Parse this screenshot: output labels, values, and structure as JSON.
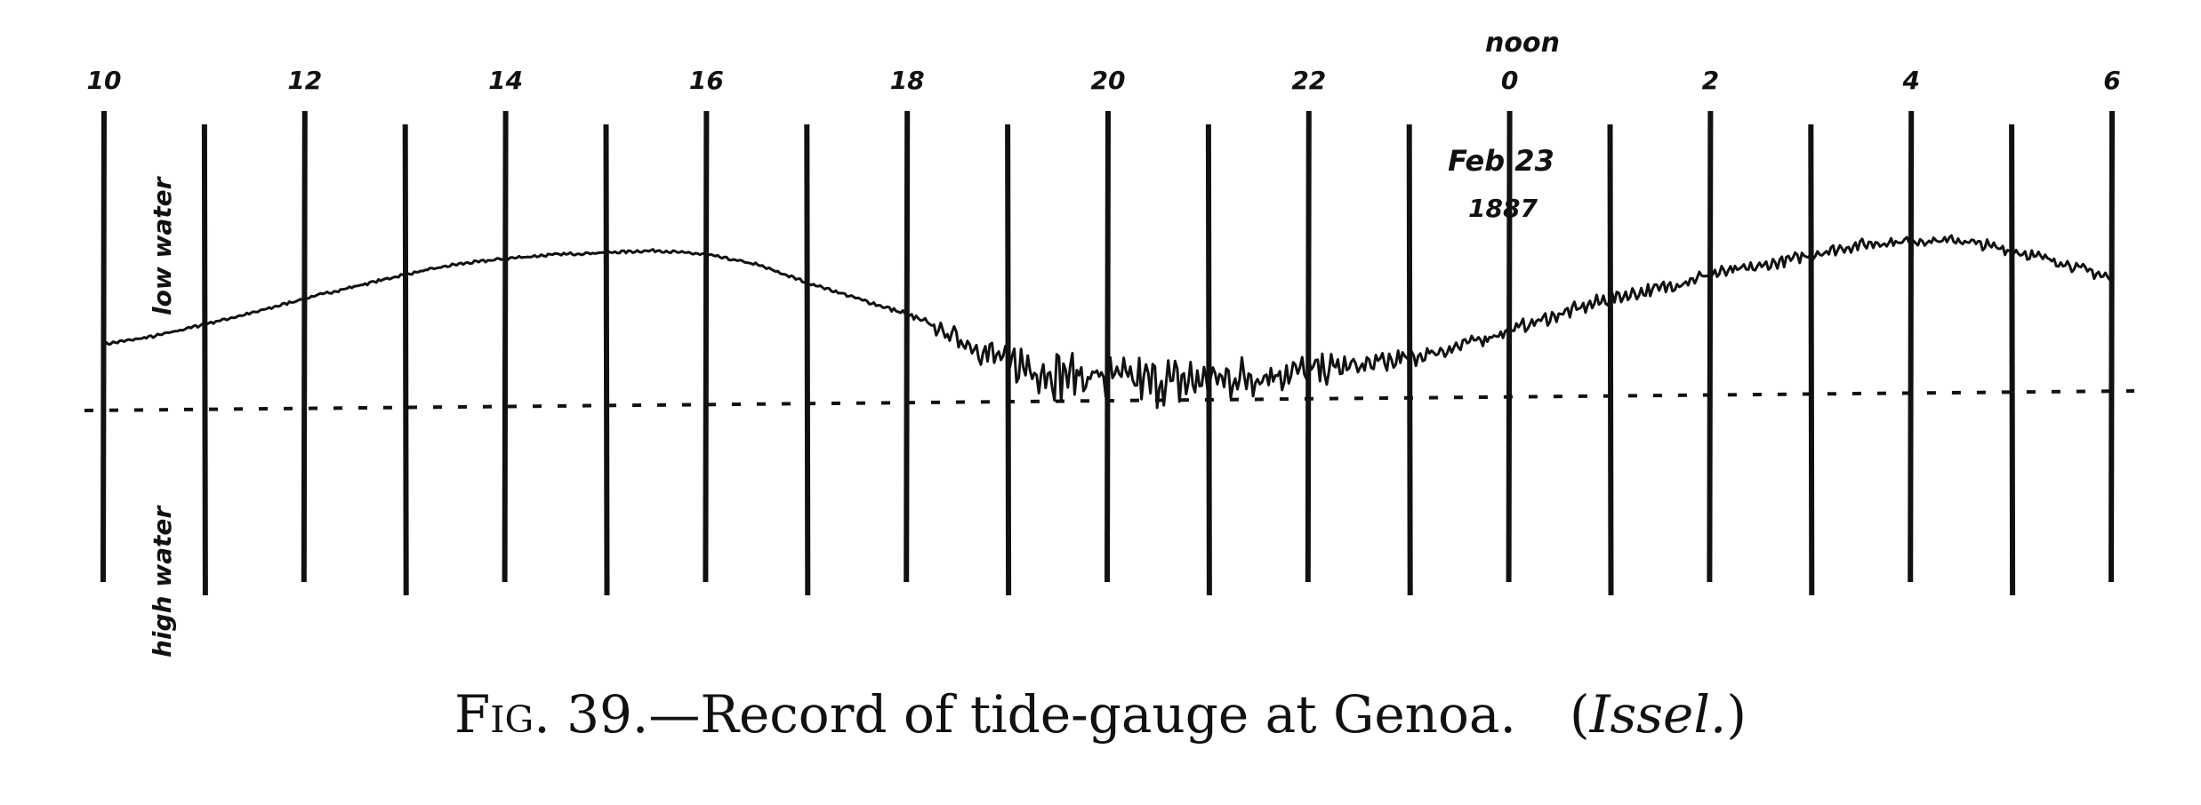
{
  "chart_data": {
    "type": "line",
    "hour_ticks": [
      "10",
      "12",
      "14",
      "16",
      "18",
      "20",
      "22",
      "0",
      "2",
      "4",
      "6"
    ],
    "noon_label": "noon",
    "date_label": [
      "Feb 23",
      "1887"
    ],
    "y_labels": {
      "upper": "low water",
      "lower": "high water"
    },
    "series": [
      {
        "hours": [
          10,
          10.5,
          11,
          11.5,
          12,
          12.5,
          13,
          13.5,
          14,
          14.5,
          15,
          15.5,
          16,
          16.5,
          17,
          17.5,
          18,
          18.5,
          19,
          19.5,
          20,
          20.5,
          21,
          21.5,
          22,
          22.5,
          23,
          23.5,
          24,
          24.5,
          25,
          25.5,
          26,
          26.5,
          27,
          27.5,
          28,
          28.5,
          29,
          29.5,
          30
        ],
        "level": [
          0.27,
          0.31,
          0.37,
          0.43,
          0.5,
          0.56,
          0.62,
          0.67,
          0.7,
          0.72,
          0.73,
          0.74,
          0.72,
          0.67,
          0.58,
          0.5,
          0.42,
          0.3,
          0.18,
          0.12,
          0.1,
          0.08,
          0.09,
          0.11,
          0.14,
          0.16,
          0.2,
          0.26,
          0.34,
          0.42,
          0.5,
          0.55,
          0.62,
          0.66,
          0.72,
          0.77,
          0.79,
          0.79,
          0.74,
          0.68,
          0.6
        ],
        "noise": [
          0.01,
          0.01,
          0.01,
          0.01,
          0.01,
          0.01,
          0.01,
          0.01,
          0.01,
          0.01,
          0.01,
          0.01,
          0.01,
          0.01,
          0.01,
          0.01,
          0.02,
          0.08,
          0.14,
          0.18,
          0.18,
          0.17,
          0.16,
          0.14,
          0.12,
          0.1,
          0.08,
          0.06,
          0.05,
          0.05,
          0.05,
          0.05,
          0.05,
          0.04,
          0.04,
          0.04,
          0.04,
          0.04,
          0.04,
          0.04,
          0.04
        ]
      }
    ]
  },
  "caption": {
    "fig_label": "Fig. 39.",
    "text": "—Record of tide-gauge at Genoa.",
    "credit_open": "(",
    "credit_name": "Issel.",
    "credit_close": ")"
  }
}
